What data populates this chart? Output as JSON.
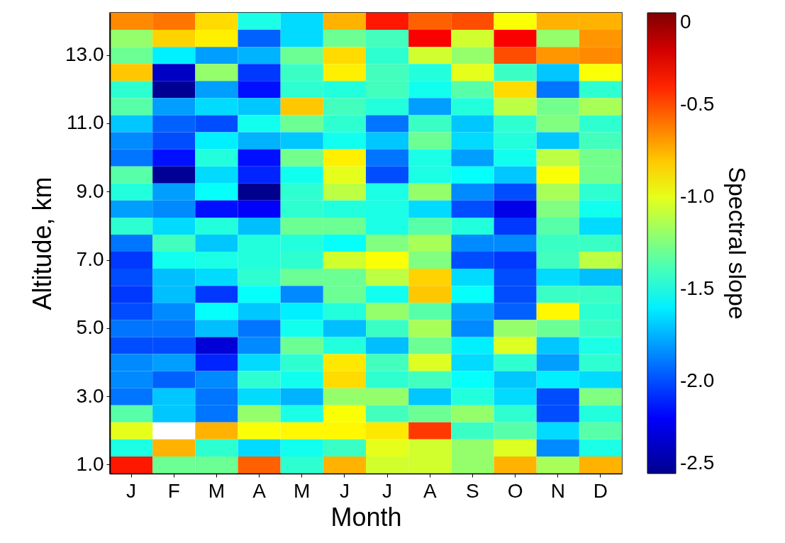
{
  "chart_data": {
    "type": "heatmap",
    "xlabel": "Month",
    "ylabel": "Altitude, km",
    "clabel": "Spectral slope",
    "categories": [
      "J",
      "F",
      "M",
      "A",
      "M",
      "J",
      "J",
      "A",
      "S",
      "O",
      "N",
      "D"
    ],
    "y_categories": [
      null,
      null,
      "13.0",
      null,
      null,
      null,
      "11.0",
      null,
      null,
      null,
      "9.0",
      null,
      null,
      null,
      "7.0",
      null,
      null,
      null,
      "5.0",
      null,
      null,
      null,
      "3.0",
      null,
      null,
      null,
      "1.0"
    ],
    "clim": [
      -2.5,
      0
    ],
    "cticks": [
      -2.5,
      {
        "value": -2,
        "label": "-2.0"
      },
      -1.5,
      {
        "value": -1,
        "label": "-1.0"
      },
      -0.5,
      0
    ],
    "cells": [
      [
        -0.65,
        -0.6,
        -0.85,
        -1.5,
        -1.65,
        -0.75,
        -0.37,
        -0.55,
        -0.5,
        -0.95,
        -0.75,
        -0.75
      ],
      [
        -1.2,
        -0.83,
        -0.9,
        -1.95,
        -1.65,
        -1.3,
        -1.4,
        -0.3,
        -1.05,
        -0.3,
        -1.2,
        -0.68
      ],
      [
        -1.3,
        -1.6,
        -1.8,
        -1.75,
        -1.3,
        -0.85,
        -1.45,
        -1.05,
        -1.2,
        -0.5,
        -0.68,
        -0.65
      ],
      [
        -0.8,
        -2.35,
        -1.2,
        -2.05,
        -1.42,
        -0.9,
        -1.4,
        -1.48,
        -1.0,
        -1.42,
        -1.7,
        -0.95
      ],
      [
        -1.45,
        -2.49,
        -1.8,
        -2.15,
        -1.45,
        -1.48,
        -1.4,
        -1.52,
        -1.35,
        -0.85,
        -1.9,
        -1.45
      ],
      [
        -1.35,
        -1.8,
        -1.65,
        -1.7,
        -0.8,
        -1.4,
        -1.48,
        -1.8,
        -1.48,
        -1.1,
        -1.28,
        -1.15
      ],
      [
        -1.7,
        -1.95,
        -2.0,
        -1.52,
        -1.3,
        -1.45,
        -1.9,
        -1.42,
        -1.7,
        -1.45,
        -1.25,
        -1.45
      ],
      [
        -1.85,
        -2.0,
        -1.6,
        -1.75,
        -1.7,
        -1.52,
        -1.7,
        -1.3,
        -1.65,
        -1.48,
        -1.7,
        -1.4
      ],
      [
        -1.9,
        -2.15,
        -1.48,
        -2.15,
        -1.28,
        -0.9,
        -1.9,
        -1.5,
        -1.8,
        -1.52,
        -1.1,
        -1.28
      ],
      [
        -1.35,
        -2.48,
        -1.65,
        -2.1,
        -1.52,
        -1.0,
        -2.0,
        -1.5,
        -1.55,
        -1.7,
        -0.95,
        -1.28
      ],
      [
        -1.48,
        -1.8,
        -1.55,
        -2.5,
        -1.45,
        -1.1,
        -1.5,
        -1.2,
        -1.85,
        -2.0,
        -1.15,
        -1.45
      ],
      [
        -1.8,
        -1.85,
        -2.15,
        -2.2,
        -1.45,
        -1.48,
        -1.5,
        -1.65,
        -2.0,
        -2.25,
        -1.25,
        -1.52
      ],
      [
        -1.45,
        -1.65,
        -1.48,
        -1.72,
        -1.3,
        -1.3,
        -1.5,
        -1.35,
        -1.48,
        -2.05,
        -1.35,
        -1.65
      ],
      [
        -1.9,
        -1.4,
        -1.7,
        -1.48,
        -1.48,
        -1.55,
        -1.25,
        -1.15,
        -1.85,
        -1.85,
        -1.42,
        -1.42
      ],
      [
        -2.05,
        -1.52,
        -1.5,
        -1.48,
        -1.45,
        -1.05,
        -0.95,
        -1.25,
        -2.0,
        -2.05,
        -1.4,
        -1.1
      ],
      [
        -2.0,
        -1.72,
        -1.65,
        -1.45,
        -1.3,
        -1.3,
        -1.1,
        -0.83,
        -1.65,
        -2.0,
        -1.65,
        -1.72
      ],
      [
        -2.05,
        -1.72,
        -2.05,
        -1.55,
        -1.85,
        -1.3,
        -1.52,
        -0.8,
        -1.55,
        -2.0,
        -1.42,
        -1.42
      ],
      [
        -2.0,
        -1.85,
        -1.55,
        -1.7,
        -1.6,
        -1.48,
        -1.2,
        -1.35,
        -1.8,
        -1.95,
        -0.92,
        -1.45
      ],
      [
        -1.9,
        -1.9,
        -1.72,
        -1.9,
        -1.52,
        -1.72,
        -1.42,
        -1.15,
        -1.85,
        -1.2,
        -1.3,
        -1.42
      ],
      [
        -2.0,
        -2.0,
        -2.3,
        -1.85,
        -1.3,
        -1.48,
        -1.72,
        -1.3,
        -1.6,
        -1.02,
        -1.7,
        -1.5
      ],
      [
        -1.85,
        -1.8,
        -2.1,
        -1.65,
        -1.45,
        -0.88,
        -1.4,
        -1.02,
        -1.65,
        -1.45,
        -1.8,
        -1.45
      ],
      [
        -1.85,
        -1.95,
        -1.85,
        -1.45,
        -1.52,
        -0.85,
        -1.45,
        -1.4,
        -1.55,
        -1.7,
        -1.6,
        -1.65
      ],
      [
        -1.9,
        -1.7,
        -1.9,
        -1.65,
        -1.75,
        -1.2,
        -1.2,
        -1.7,
        -1.48,
        -1.65,
        -2.0,
        -1.25
      ],
      [
        -1.35,
        -1.7,
        -1.9,
        -1.2,
        -1.5,
        -0.95,
        -1.4,
        -1.3,
        -1.2,
        -1.45,
        -2.0,
        -1.48
      ],
      [
        -1.0,
        null,
        -0.75,
        -0.95,
        -0.92,
        -0.92,
        -0.88,
        -0.45,
        -1.42,
        -1.35,
        -1.65,
        -1.35
      ],
      [
        -1.5,
        -0.75,
        -1.45,
        -1.65,
        -1.52,
        -1.42,
        -1.0,
        -1.05,
        -1.2,
        -1.02,
        -1.85,
        -1.5
      ],
      [
        -0.37,
        -1.3,
        -1.3,
        -0.55,
        -1.45,
        -0.75,
        -1.05,
        -1.05,
        -1.2,
        -0.75,
        -1.15,
        -0.75
      ]
    ]
  }
}
